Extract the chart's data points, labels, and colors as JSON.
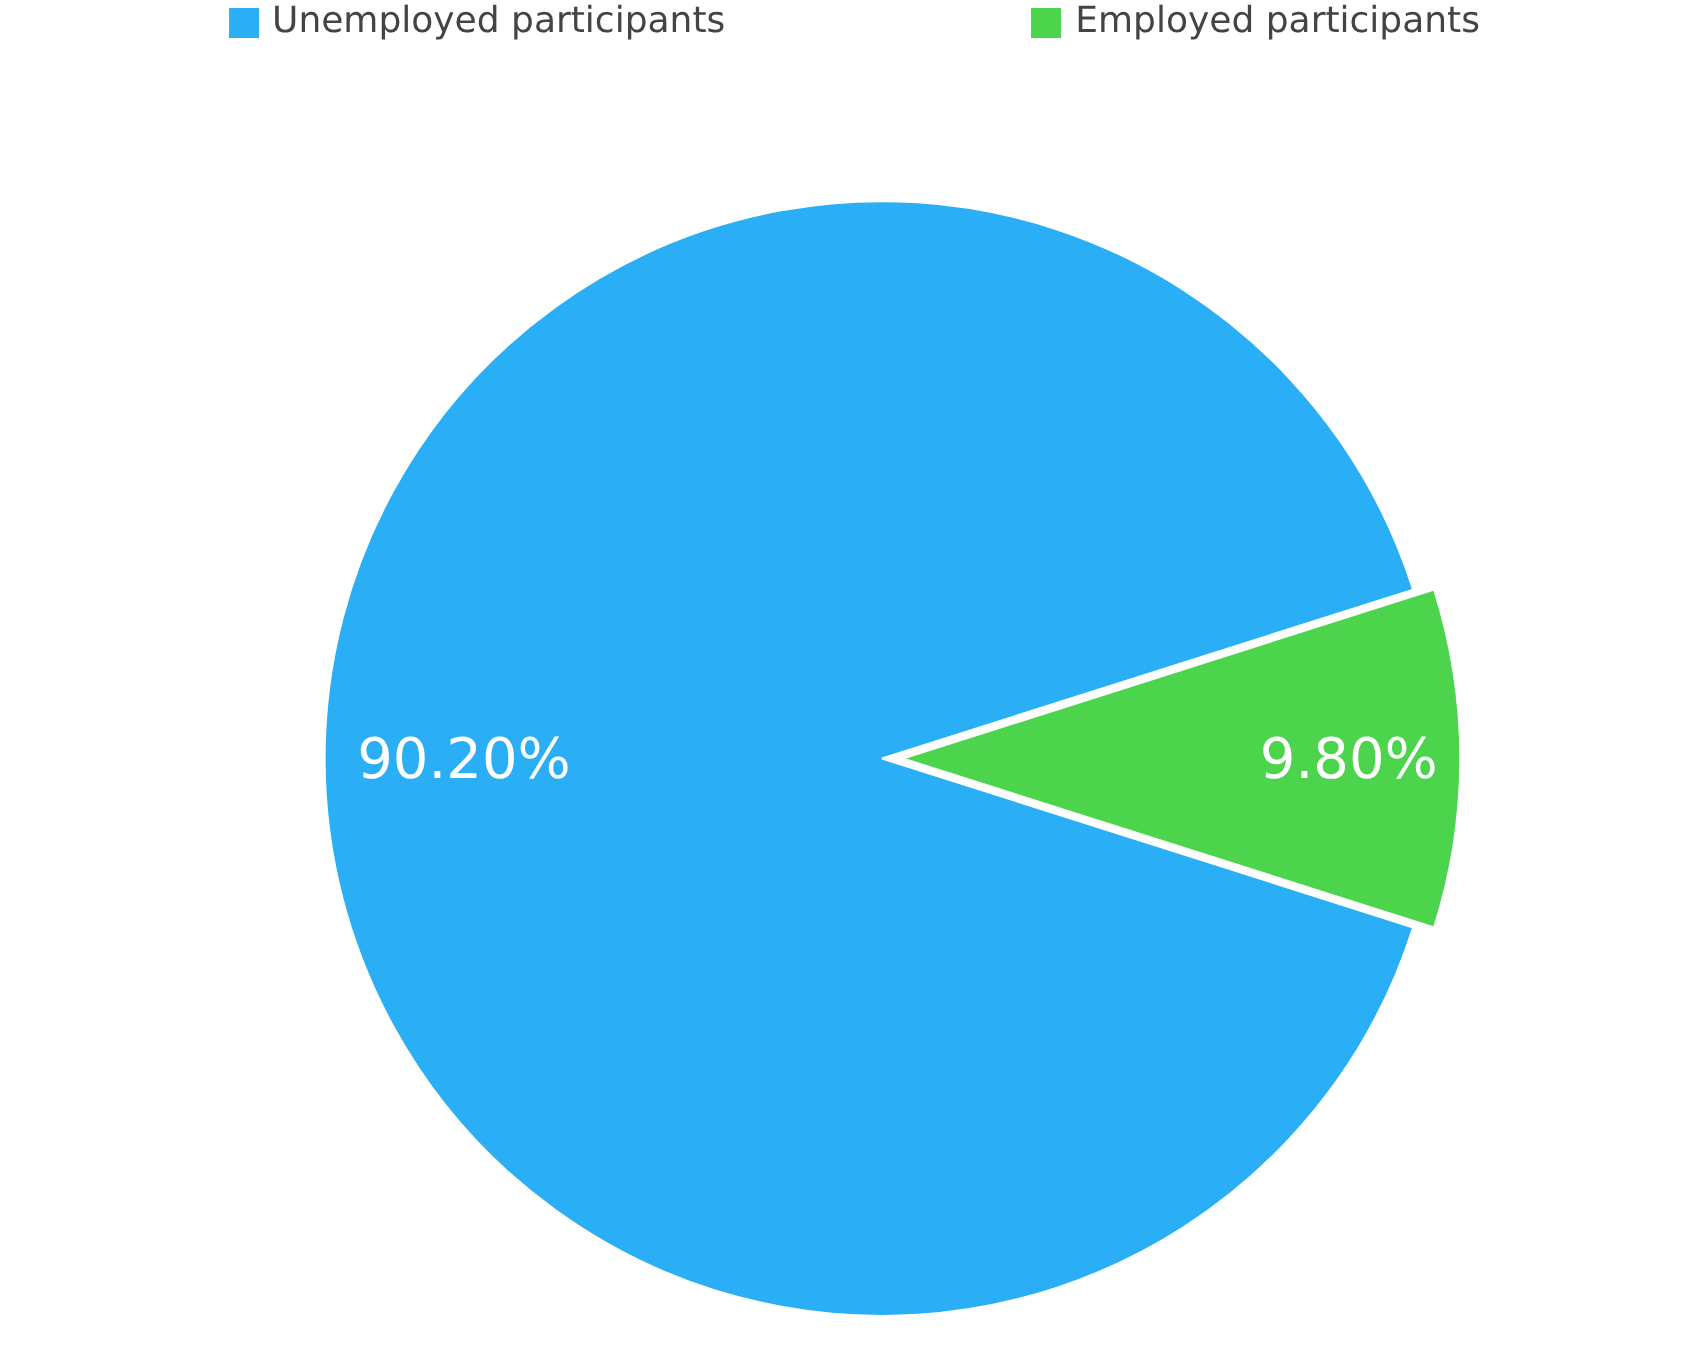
{
  "chart_data": {
    "type": "pie",
    "categories": [
      "Unemployed participants",
      "Employed participants"
    ],
    "values": [
      90.2,
      9.8
    ],
    "colors": [
      "#2aaef5",
      "#4cd44c"
    ],
    "value_labels": [
      "90.20%",
      "9.80%"
    ],
    "legend": "top"
  }
}
